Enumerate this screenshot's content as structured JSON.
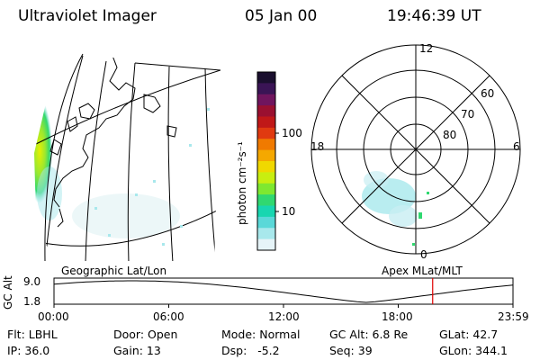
{
  "header": {
    "title": "Ultraviolet Imager",
    "date": "05 Jan 00",
    "time": "19:46:39 UT"
  },
  "colorbar": {
    "unit_label": "photon cm⁻²s⁻¹",
    "ticks": [
      "100",
      "10"
    ],
    "colors": [
      "#1a0f2e",
      "#3a1455",
      "#70155e",
      "#9a1030",
      "#c01818",
      "#e03a10",
      "#f07a00",
      "#f5a800",
      "#f0d800",
      "#c8ee10",
      "#7ee830",
      "#30d870",
      "#18d6b0",
      "#5ad8d8",
      "#a8e8ec",
      "#e6f4f8"
    ]
  },
  "polar_plot": {
    "mlt_labels": [
      "12",
      "18",
      "6",
      "0"
    ],
    "lat_labels": [
      "60",
      "70",
      "80"
    ]
  },
  "timeline": {
    "y_axis_label": "GC Alt",
    "y_ticks": [
      "9.0",
      "1.8"
    ],
    "left_caption": "Geographic Lat/Lon",
    "right_caption": "Apex MLat/MLT",
    "x_ticks": [
      "00:00",
      "06:00",
      "12:00",
      "18:00",
      "23:59"
    ],
    "current_time_fraction": 0.825,
    "marker_color": "#e00000"
  },
  "info": {
    "row1": {
      "flt": "Flt: LBHL",
      "door": "Door: Open",
      "mode": "Mode: Normal",
      "gc_alt": "GC Alt: 6.8 Re",
      "glat": "GLat: 42.7"
    },
    "row2": {
      "ip": "IP: 36.0",
      "gain": "Gain: 13",
      "dsp": "Dsp:   -5.2",
      "seq": "Seq: 39",
      "glon": "GLon: 344.1"
    }
  }
}
